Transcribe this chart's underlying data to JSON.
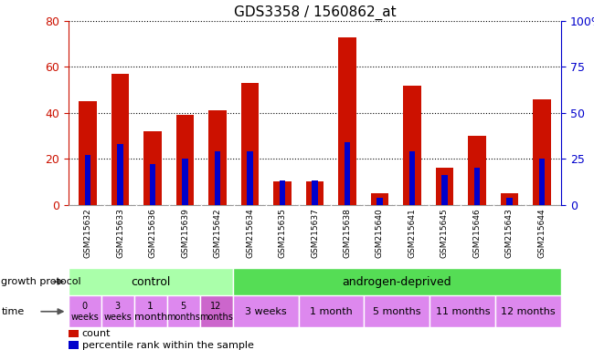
{
  "title": "GDS3358 / 1560862_at",
  "samples": [
    "GSM215632",
    "GSM215633",
    "GSM215636",
    "GSM215639",
    "GSM215642",
    "GSM215634",
    "GSM215635",
    "GSM215637",
    "GSM215638",
    "GSM215640",
    "GSM215641",
    "GSM215645",
    "GSM215646",
    "GSM215643",
    "GSM215644"
  ],
  "count_values": [
    45,
    57,
    32,
    39,
    41,
    53,
    10,
    10,
    73,
    5,
    52,
    16,
    30,
    5,
    46
  ],
  "percentile_values": [
    27,
    33,
    22,
    25,
    29,
    29,
    13,
    13,
    34,
    4,
    29,
    16,
    20,
    4,
    25
  ],
  "ylim_left": [
    0,
    80
  ],
  "ylim_right": [
    0,
    100
  ],
  "yticks_left": [
    0,
    20,
    40,
    60,
    80
  ],
  "yticks_right": [
    0,
    25,
    50,
    75,
    100
  ],
  "yticklabels_right": [
    "0",
    "25",
    "50",
    "75",
    "100%"
  ],
  "bar_color": "#cc1100",
  "percentile_color": "#0000cc",
  "grid_color": "#000000",
  "control_color": "#aaffaa",
  "androgen_color": "#55dd55",
  "time_bg_color": "#dd88ee",
  "time_12mo_ctrl_color": "#cc66cc",
  "control_label": "control",
  "androgen_label": "androgen-deprived",
  "time_groups_control": [
    {
      "label": "0\nweeks",
      "fontsize": 7
    },
    {
      "label": "3\nweeks",
      "fontsize": 7
    },
    {
      "label": "1\nmonth",
      "fontsize": 8
    },
    {
      "label": "5\nmonths",
      "fontsize": 7
    },
    {
      "label": "12\nmonths",
      "fontsize": 7
    }
  ],
  "time_groups_androgen": [
    {
      "label": "3 weeks",
      "span": 2
    },
    {
      "label": "1 month",
      "span": 2
    },
    {
      "label": "5 months",
      "span": 2
    },
    {
      "label": "11 months",
      "span": 2
    },
    {
      "label": "12 months",
      "span": 2
    }
  ],
  "legend_count_label": "count",
  "legend_percentile_label": "percentile rank within the sample",
  "axis_color_left": "#cc1100",
  "axis_color_right": "#0000cc",
  "growth_protocol_label": "growth protocol",
  "time_label": "time",
  "background_color": "#ffffff",
  "bar_width": 0.55,
  "sample_bg_color": "#cccccc",
  "ctrl_sample_bg": "#cccccc",
  "and_sample_bg": "#cccccc"
}
